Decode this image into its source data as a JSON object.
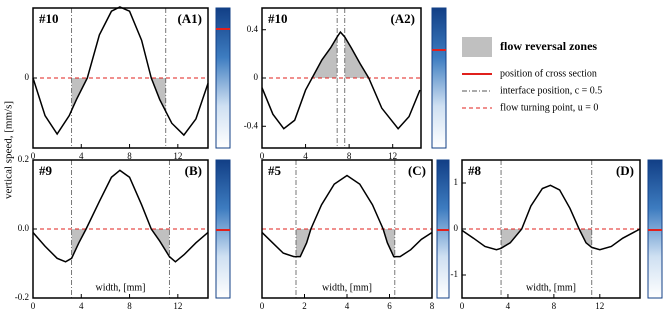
{
  "legend": {
    "items": [
      {
        "label": "flow reversal zones",
        "color": "#c0c0c0"
      },
      {
        "label": "position of cross section",
        "color": "#e0201c"
      },
      {
        "label": "interface position, c = 0.5",
        "color": "#555555"
      },
      {
        "label": "flow turning point, u = 0",
        "color": "#e0201c"
      }
    ]
  },
  "chart_data": [
    {
      "type": "line",
      "case": "#10",
      "panel": "(A1)",
      "ylabel": "vertical speed, [mm/s]",
      "color": "#000000",
      "x": [
        0,
        1,
        2,
        3,
        3.6,
        4.5,
        5.5,
        6.5,
        7.2,
        8,
        9,
        9.8,
        10.5,
        11.5,
        12.5,
        13.5,
        14.5
      ],
      "values": [
        0,
        -0.35,
        -0.52,
        -0.35,
        -0.2,
        0,
        0.4,
        0.62,
        0.66,
        0.62,
        0.35,
        0,
        -0.2,
        -0.42,
        -0.53,
        -0.38,
        -0.05
      ],
      "interfaces": [
        3.2,
        11.0
      ],
      "turning_point": 0,
      "xlim": [
        0,
        14.5
      ],
      "ylim": [
        -0.65,
        0.65
      ],
      "xticks": [
        0,
        4,
        8,
        12
      ],
      "yticks": [
        0
      ]
    },
    {
      "type": "line",
      "case": "#10",
      "panel": "(A2)",
      "color": "#000000",
      "x": [
        0,
        1,
        2,
        3,
        4,
        4.6,
        5.5,
        6.3,
        6.9,
        7.2,
        7.6,
        8.2,
        9,
        9.8,
        11,
        12.5,
        13.5,
        14.5
      ],
      "values": [
        -0.08,
        -0.3,
        -0.42,
        -0.35,
        -0.1,
        0,
        0.15,
        0.25,
        0.34,
        0.38,
        0.34,
        0.25,
        0.12,
        0,
        -0.25,
        -0.42,
        -0.32,
        -0.1
      ],
      "interfaces": [
        6.9,
        7.6
      ],
      "turning_point": 0,
      "xlim": [
        0,
        14.6
      ],
      "ylim": [
        -0.58,
        0.58
      ],
      "xticks": [
        0,
        4,
        8,
        12
      ],
      "yticks": [
        0.4,
        0,
        -0.4
      ]
    },
    {
      "type": "line",
      "case": "#9",
      "panel": "(B)",
      "xlabel": "width, [mm]",
      "color": "#000000",
      "x": [
        0,
        1,
        2,
        2.7,
        3.2,
        3.8,
        4.4,
        5.5,
        6.5,
        7.2,
        8,
        9,
        9.8,
        10.5,
        11.3,
        11.8,
        12.5,
        13.5,
        14.5
      ],
      "values": [
        -0.01,
        -0.05,
        -0.085,
        -0.095,
        -0.085,
        -0.04,
        0,
        0.08,
        0.15,
        0.17,
        0.15,
        0.07,
        0,
        -0.035,
        -0.08,
        -0.095,
        -0.075,
        -0.04,
        -0.01
      ],
      "interfaces": [
        3.2,
        11.3
      ],
      "turning_point": 0,
      "xlim": [
        0,
        14.5
      ],
      "ylim": [
        -0.2,
        0.2
      ],
      "xticks": [
        0,
        4,
        8,
        12
      ],
      "yticks": [
        0.2,
        {
          "value": 0,
          "label": "0.0"
        },
        -0.2
      ]
    },
    {
      "type": "line",
      "case": "#5",
      "panel": "(C)",
      "xlabel": "width, [mm]",
      "color": "#000000",
      "x": [
        0,
        0.5,
        1,
        1.5,
        1.8,
        2.1,
        2.3,
        2.8,
        3.4,
        4,
        4.6,
        5.2,
        5.7,
        5.9,
        6.2,
        6.5,
        7,
        7.5,
        8
      ],
      "values": [
        -0.01,
        -0.04,
        -0.07,
        -0.08,
        -0.08,
        -0.04,
        0,
        0.07,
        0.13,
        0.155,
        0.13,
        0.07,
        0,
        -0.04,
        -0.08,
        -0.08,
        -0.06,
        -0.03,
        -0.01
      ],
      "interfaces": [
        1.6,
        6.25
      ],
      "turning_point": 0,
      "xlim": [
        0,
        8
      ],
      "ylim": [
        -0.2,
        0.2
      ],
      "xticks": [
        0,
        2,
        4,
        6,
        8
      ],
      "yticks": []
    },
    {
      "type": "line",
      "case": "#8",
      "panel": "(D)",
      "xlabel": "width, [mm]",
      "color": "#000000",
      "x": [
        0,
        1,
        2,
        3,
        3.4,
        4.2,
        5.2,
        6,
        7,
        7.7,
        8.5,
        9.4,
        10.2,
        10.8,
        11.3,
        12,
        13,
        14,
        15.5
      ],
      "values": [
        -0.03,
        -0.2,
        -0.38,
        -0.45,
        -0.42,
        -0.3,
        0,
        0.5,
        0.88,
        0.95,
        0.85,
        0.45,
        0,
        -0.3,
        -0.4,
        -0.45,
        -0.38,
        -0.2,
        0
      ],
      "interfaces": [
        3.4,
        11.3
      ],
      "turning_point": 0,
      "xlim": [
        0,
        15.5
      ],
      "ylim": [
        -1.5,
        1.5
      ],
      "xticks": [
        0,
        4,
        8,
        12
      ],
      "yticks": [
        1,
        0,
        -1
      ]
    }
  ]
}
